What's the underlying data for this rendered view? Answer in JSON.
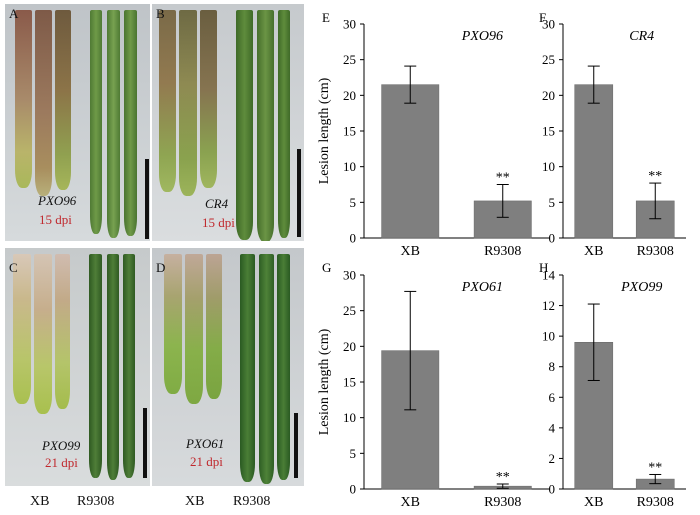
{
  "photos": [
    {
      "letter": "A",
      "strain": "PXO96",
      "dpi": "15 dpi"
    },
    {
      "letter": "B",
      "strain": "CR4",
      "dpi": "15 dpi"
    },
    {
      "letter": "C",
      "strain": "PXO99",
      "dpi": "21 dpi"
    },
    {
      "letter": "D",
      "strain": "PXO61",
      "dpi": "21 dpi"
    }
  ],
  "captions": [
    {
      "xb": "XB",
      "r": "R9308"
    },
    {
      "xb": "XB",
      "r": "R9308"
    }
  ],
  "chart_data": [
    {
      "panel": "E",
      "type": "bar",
      "title": "PXO96",
      "ylabel": "Lesion length (cm)",
      "categories": [
        "XB",
        "R9308"
      ],
      "values": [
        21.5,
        5.2
      ],
      "errors": [
        2.6,
        2.3
      ],
      "ylim": [
        0,
        30
      ],
      "yticks": [
        0,
        5,
        10,
        15,
        20,
        25,
        30
      ],
      "annotation": "**"
    },
    {
      "panel": "F",
      "type": "bar",
      "title": "CR4",
      "ylabel": "",
      "categories": [
        "XB",
        "R9308"
      ],
      "values": [
        21.5,
        5.2
      ],
      "errors": [
        2.6,
        2.5
      ],
      "ylim": [
        0,
        30
      ],
      "yticks": [
        0,
        5,
        10,
        15,
        20,
        25,
        30
      ],
      "annotation": "**"
    },
    {
      "panel": "G",
      "type": "bar",
      "title": "PXO61",
      "ylabel": "Lesion length (cm)",
      "categories": [
        "XB",
        "R9308"
      ],
      "values": [
        19.4,
        0.4
      ],
      "errors": [
        8.3,
        0.3
      ],
      "ylim": [
        0,
        30
      ],
      "yticks": [
        0,
        5,
        10,
        15,
        20,
        25,
        30
      ],
      "annotation": "**"
    },
    {
      "panel": "H",
      "type": "bar",
      "title": "PXO99",
      "ylabel": "",
      "categories": [
        "XB",
        "R9308"
      ],
      "values": [
        9.6,
        0.65
      ],
      "errors": [
        2.5,
        0.3
      ],
      "ylim": [
        0,
        14
      ],
      "yticks": [
        0,
        2,
        4,
        6,
        8,
        10,
        12,
        14
      ],
      "annotation": "**"
    }
  ]
}
